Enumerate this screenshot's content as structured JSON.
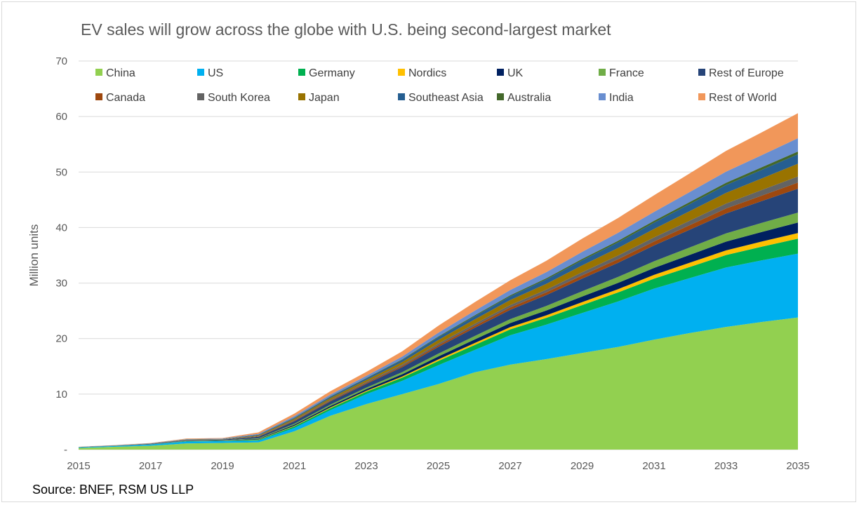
{
  "chart_data": {
    "type": "area",
    "stacked": true,
    "title": "EV sales will grow across the globe with U.S. being second-largest market",
    "ylabel": "Million units",
    "xlabel": "",
    "ylim": [
      0,
      70
    ],
    "yticks": [
      0,
      10,
      20,
      30,
      40,
      50,
      60,
      70
    ],
    "ytick_labels": [
      "-",
      "10",
      "20",
      "30",
      "40",
      "50",
      "60",
      "70"
    ],
    "xticks": [
      "2015",
      "2017",
      "2019",
      "2021",
      "2023",
      "2025",
      "2027",
      "2029",
      "2031",
      "2033",
      "2035"
    ],
    "grid": true,
    "legend_position": "top",
    "x": [
      2015,
      2016,
      2017,
      2018,
      2019,
      2020,
      2021,
      2022,
      2023,
      2024,
      2025,
      2026,
      2027,
      2028,
      2029,
      2030,
      2031,
      2032,
      2033,
      2034,
      2035
    ],
    "series": [
      {
        "name": "China",
        "color": "#92D050",
        "values": [
          0.3,
          0.5,
          0.7,
          1.1,
          1.2,
          1.3,
          3.3,
          6.1,
          8.2,
          10,
          11.8,
          13.9,
          15.3,
          16.3,
          17.4,
          18.5,
          19.8,
          21,
          22.1,
          23,
          23.8
        ]
      },
      {
        "name": "US",
        "color": "#00B0F0",
        "values": [
          0.1,
          0.15,
          0.2,
          0.35,
          0.33,
          0.3,
          0.6,
          1.0,
          1.8,
          2.4,
          3.4,
          4.0,
          5.3,
          6.2,
          7.2,
          8.2,
          9.2,
          9.9,
          10.7,
          11.1,
          11.5
        ]
      },
      {
        "name": "Germany",
        "color": "#00B050",
        "values": [
          0.01,
          0.02,
          0.03,
          0.06,
          0.06,
          0.16,
          0.28,
          0.36,
          0.43,
          0.57,
          0.76,
          0.92,
          1.06,
          1.23,
          1.43,
          1.61,
          1.8,
          2.02,
          2.25,
          2.47,
          2.7
        ]
      },
      {
        "name": "Nordics",
        "color": "#FFC000",
        "values": [
          0,
          0.01,
          0.01,
          0.02,
          0.02,
          0.06,
          0.1,
          0.14,
          0.16,
          0.21,
          0.28,
          0.34,
          0.4,
          0.46,
          0.54,
          0.6,
          0.67,
          0.76,
          0.84,
          0.92,
          1.0
        ]
      },
      {
        "name": "UK",
        "color": "#002060",
        "values": [
          0.01,
          0.01,
          0.02,
          0.04,
          0.04,
          0.11,
          0.2,
          0.26,
          0.3,
          0.4,
          0.53,
          0.65,
          0.74,
          0.86,
          1.0,
          1.13,
          1.26,
          1.42,
          1.58,
          1.73,
          1.9
        ]
      },
      {
        "name": "France",
        "color": "#70AD47",
        "values": [
          0.01,
          0.01,
          0.02,
          0.04,
          0.04,
          0.11,
          0.18,
          0.24,
          0.28,
          0.38,
          0.5,
          0.61,
          0.7,
          0.82,
          0.95,
          1.07,
          1.19,
          1.34,
          1.49,
          1.64,
          1.8
        ]
      },
      {
        "name": "Rest of Europe",
        "color": "#264478",
        "values": [
          0.02,
          0.03,
          0.05,
          0.09,
          0.1,
          0.26,
          0.44,
          0.58,
          0.68,
          0.9,
          1.21,
          1.46,
          1.68,
          1.96,
          2.28,
          2.55,
          2.86,
          3.21,
          3.57,
          3.93,
          4.3
        ]
      },
      {
        "name": "Canada",
        "color": "#9E480E",
        "values": [
          0,
          0.01,
          0.01,
          0.02,
          0.02,
          0.06,
          0.11,
          0.15,
          0.17,
          0.23,
          0.31,
          0.37,
          0.43,
          0.49,
          0.58,
          0.65,
          0.72,
          0.81,
          0.9,
          0.99,
          1.1
        ]
      },
      {
        "name": "South Korea",
        "color": "#636363",
        "values": [
          0,
          0.01,
          0.01,
          0.02,
          0.02,
          0.06,
          0.11,
          0.15,
          0.17,
          0.23,
          0.31,
          0.37,
          0.43,
          0.49,
          0.58,
          0.65,
          0.72,
          0.81,
          0.9,
          0.99,
          1.1
        ]
      },
      {
        "name": "Japan",
        "color": "#997300",
        "values": [
          0.01,
          0.01,
          0.03,
          0.05,
          0.05,
          0.14,
          0.24,
          0.31,
          0.36,
          0.48,
          0.65,
          0.78,
          0.9,
          1.05,
          1.22,
          1.37,
          1.53,
          1.72,
          1.91,
          2.1,
          2.3
        ]
      },
      {
        "name": "Southeast Asia",
        "color": "#255E91",
        "values": [
          0.01,
          0.01,
          0.02,
          0.04,
          0.04,
          0.1,
          0.17,
          0.23,
          0.27,
          0.36,
          0.48,
          0.58,
          0.66,
          0.77,
          0.9,
          1.0,
          1.13,
          1.27,
          1.41,
          1.55,
          1.7
        ]
      },
      {
        "name": "Australia",
        "color": "#43682B",
        "values": [
          0,
          0,
          0.01,
          0.01,
          0.01,
          0.03,
          0.05,
          0.07,
          0.08,
          0.11,
          0.14,
          0.17,
          0.2,
          0.23,
          0.27,
          0.3,
          0.34,
          0.38,
          0.42,
          0.46,
          0.5
        ]
      },
      {
        "name": "India",
        "color": "#698ED0",
        "values": [
          0.01,
          0.01,
          0.03,
          0.05,
          0.05,
          0.14,
          0.25,
          0.32,
          0.38,
          0.5,
          0.67,
          0.82,
          0.94,
          1.09,
          1.27,
          1.43,
          1.6,
          1.8,
          2.0,
          2.19,
          2.4
        ]
      },
      {
        "name": "Rest of World",
        "color": "#F1975A",
        "values": [
          0.02,
          0.03,
          0.05,
          0.1,
          0.1,
          0.27,
          0.46,
          0.61,
          0.71,
          0.94,
          1.26,
          1.53,
          1.76,
          2.05,
          2.39,
          2.67,
          2.99,
          3.36,
          3.74,
          4.11,
          4.5
        ]
      }
    ]
  },
  "source": "Source: BNEF, RSM US LLP"
}
